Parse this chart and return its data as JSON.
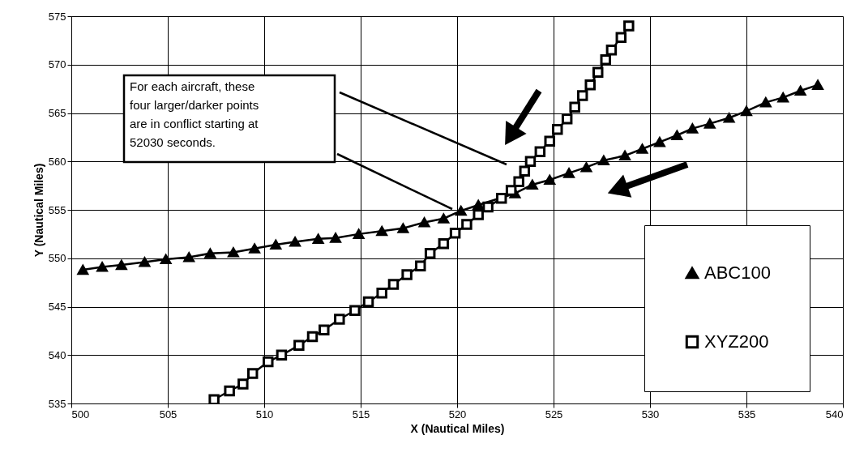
{
  "chart_data": {
    "type": "line",
    "xlabel": "X  (Nautical Miles)",
    "ylabel": "Y (Nautical Miles)",
    "xlim": [
      500,
      540
    ],
    "xticks": [
      500,
      505,
      510,
      515,
      520,
      525,
      530,
      535,
      540
    ],
    "ylim": [
      535,
      575
    ],
    "yticks": [
      535,
      540,
      545,
      550,
      555,
      560,
      565,
      570,
      575
    ],
    "grid": true,
    "legend": "bottom right",
    "line_style": "solid",
    "annotations": [
      "For each aircraft, these\nfour larger/darker points\nare in conflict starting at\n52030 seconds."
    ],
    "series": [
      {
        "name": "ABC100",
        "color": "#000000",
        "marker": "triangle",
        "x": [
          500.6,
          501.6,
          502.6,
          503.8,
          504.9,
          506.1,
          507.2,
          508.4,
          509.5,
          510.6,
          511.6,
          512.8,
          513.7,
          514.9,
          516.1,
          517.2,
          518.3,
          519.3,
          520.2,
          521.1,
          522.1,
          523.0,
          523.9,
          524.8,
          525.8,
          526.7,
          527.6,
          528.7,
          529.6,
          530.5,
          531.4,
          532.2,
          533.1,
          534.1,
          535.0,
          536.0,
          536.9,
          537.8,
          538.7
        ],
        "values": [
          548.8,
          549.1,
          549.3,
          549.6,
          549.9,
          550.1,
          550.5,
          550.6,
          551.0,
          551.4,
          551.7,
          552.0,
          552.1,
          552.5,
          552.8,
          553.1,
          553.7,
          554.1,
          554.9,
          555.5,
          null,
          556.7,
          557.6,
          558.1,
          558.8,
          559.4,
          560.1,
          560.6,
          561.3,
          562.0,
          562.7,
          563.4,
          563.9,
          564.5,
          565.2,
          566.1,
          566.6,
          567.3,
          567.9
        ]
      },
      {
        "name": "XYZ200",
        "color": "#000000",
        "marker": "square",
        "x": [
          507.4,
          508.2,
          508.9,
          509.4,
          510.2,
          510.9,
          511.8,
          512.5,
          513.1,
          513.9,
          514.7,
          515.4,
          516.1,
          516.7,
          517.4,
          518.1,
          518.6,
          519.3,
          519.9,
          520.5,
          521.1,
          521.6,
          522.3,
          522.8,
          523.2,
          523.5,
          523.8,
          524.3,
          524.8,
          525.2,
          525.7,
          526.1,
          526.5,
          526.9,
          527.3,
          527.7,
          528.0,
          528.5,
          528.9
        ],
        "values": [
          535.4,
          536.3,
          537.0,
          538.1,
          539.3,
          540.0,
          541.0,
          541.9,
          542.6,
          543.7,
          544.6,
          545.5,
          546.4,
          547.3,
          548.3,
          549.2,
          550.5,
          551.5,
          552.6,
          553.5,
          554.5,
          555.3,
          556.2,
          557.0,
          557.9,
          559.0,
          560.0,
          561.0,
          562.1,
          563.3,
          564.4,
          565.6,
          566.8,
          567.9,
          569.2,
          570.5,
          571.5,
          572.8,
          574.0
        ]
      }
    ]
  }
}
